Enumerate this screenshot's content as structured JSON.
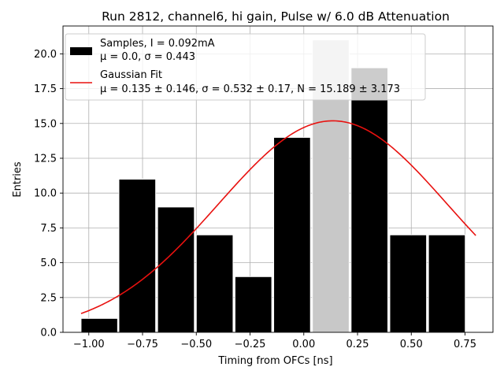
{
  "chart_data": {
    "type": "bar",
    "title": "Run 2812, channel6, hi gain, Pulse w/ 6.0 dB Attenuation",
    "xlabel": "Timing from OFCs [ns]",
    "ylabel": "Entries",
    "xlim": [
      -1.12,
      0.88
    ],
    "ylim": [
      0,
      22.0
    ],
    "grid": true,
    "x_ticks": [
      -1.0,
      -0.75,
      -0.5,
      -0.25,
      0.0,
      0.25,
      0.5,
      0.75
    ],
    "x_tick_labels": [
      "−1.00",
      "−0.75",
      "−0.50",
      "−0.25",
      "0.00",
      "0.25",
      "0.50",
      "0.75"
    ],
    "y_ticks": [
      0.0,
      2.5,
      5.0,
      7.5,
      10.0,
      12.5,
      15.0,
      17.5,
      20.0
    ],
    "y_tick_labels": [
      "0.0",
      "2.5",
      "5.0",
      "7.5",
      "10.0",
      "12.5",
      "15.0",
      "17.5",
      "20.0"
    ],
    "bins": {
      "edges": [
        -1.036,
        -0.86,
        -0.68,
        -0.5,
        -0.32,
        -0.14,
        0.04,
        0.22,
        0.4,
        0.58,
        0.76
      ],
      "widths": [
        0.17,
        0.171,
        0.171,
        0.171,
        0.171,
        0.171,
        0.171,
        0.171,
        0.171,
        0.171
      ],
      "values": [
        1,
        11,
        9,
        7,
        4,
        14,
        21,
        19,
        7,
        7
      ],
      "colors": [
        "#000000",
        "#000000",
        "#000000",
        "#000000",
        "#000000",
        "#000000",
        "#c8c8c8",
        "#000000",
        "#000000",
        "#000000"
      ]
    },
    "series": [
      {
        "name": "Samples, I = 0.092mA",
        "name_line2": "μ = 0.0, σ = 0.443",
        "type": "hist",
        "color": "#000000"
      },
      {
        "name": "Gaussian Fit",
        "name_line2": "μ = 0.135 ± 0.146, σ = 0.532 ± 0.17, N = 15.189 ± 3.173",
        "type": "line",
        "color": "#e8110f",
        "mu": 0.135,
        "sigma": 0.532,
        "N": 15.189,
        "x_range": [
          -1.036,
          0.8
        ]
      }
    ],
    "legend": {
      "placement": "top-left"
    }
  }
}
